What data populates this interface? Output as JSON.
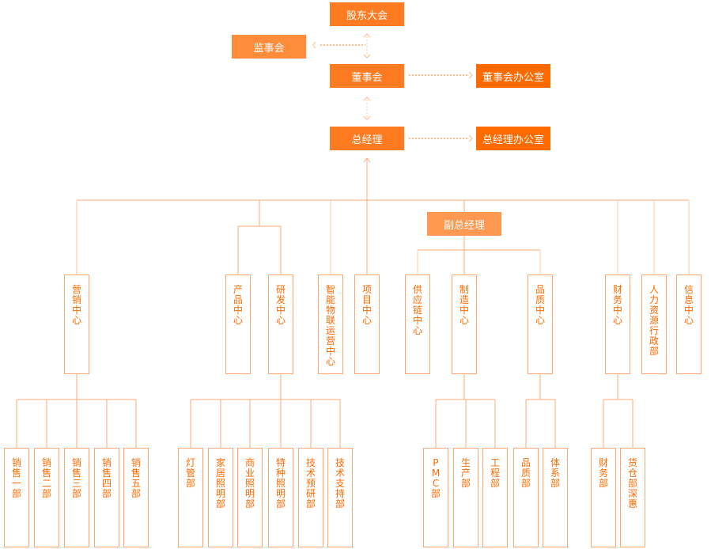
{
  "colors": {
    "primary": "#ff7b22",
    "office": "#ff6a00",
    "supervisor": "#ff8c3a",
    "deputy": "#ff9850",
    "line": "#ffaa77",
    "text": "#ff6a00"
  },
  "top": {
    "shareholders": "股东大会",
    "supervisors": "监事会",
    "board": "董事会",
    "board_office": "董事会办公室",
    "gm": "总经理",
    "gm_office": "总经理办公室",
    "deputy_gm": "副总经理"
  },
  "centers": [
    "营销中心",
    "产品中心",
    "研发中心",
    "智能物联运营中心",
    "项目中心",
    "供应链中心",
    "制造中心",
    "品质中心",
    "财务中心",
    "人力资源行政部",
    "信息中心"
  ],
  "departments": [
    "销售一部",
    "销售二部",
    "销售三部",
    "销售四部",
    "销售五部",
    "灯管部",
    "家居照明部",
    "商业照明部",
    "特种照明部",
    "技术预研部",
    "技术支持部",
    "PMC部",
    "生产部",
    "工程部",
    "品质部",
    "体系部",
    "财务部",
    "货仓部深惠"
  ]
}
